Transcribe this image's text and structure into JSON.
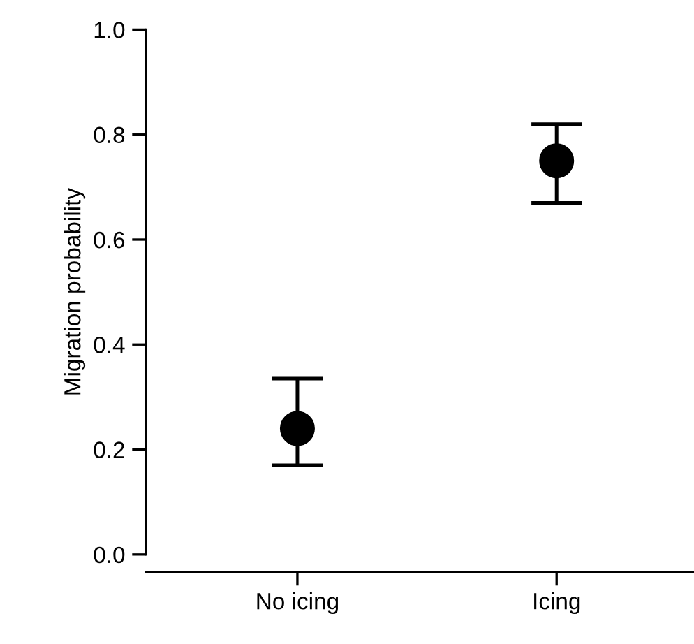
{
  "chart_data": {
    "type": "scatter",
    "ylabel": "Migration probability",
    "categories": [
      "No icing",
      "Icing"
    ],
    "series": [
      {
        "color": "#000000",
        "values": [
          0.24,
          0.75
        ],
        "errors": [
          [
            0.17,
            0.335
          ],
          [
            0.67,
            0.82
          ]
        ]
      }
    ],
    "ylim": [
      0,
      1
    ],
    "yticks": [
      {
        "value": 0,
        "label": "0.0"
      },
      0.2,
      0.4,
      0.6,
      0.8,
      {
        "value": 1,
        "label": "1.0"
      }
    ],
    "marker": "circle",
    "grid": false,
    "legend": false
  }
}
